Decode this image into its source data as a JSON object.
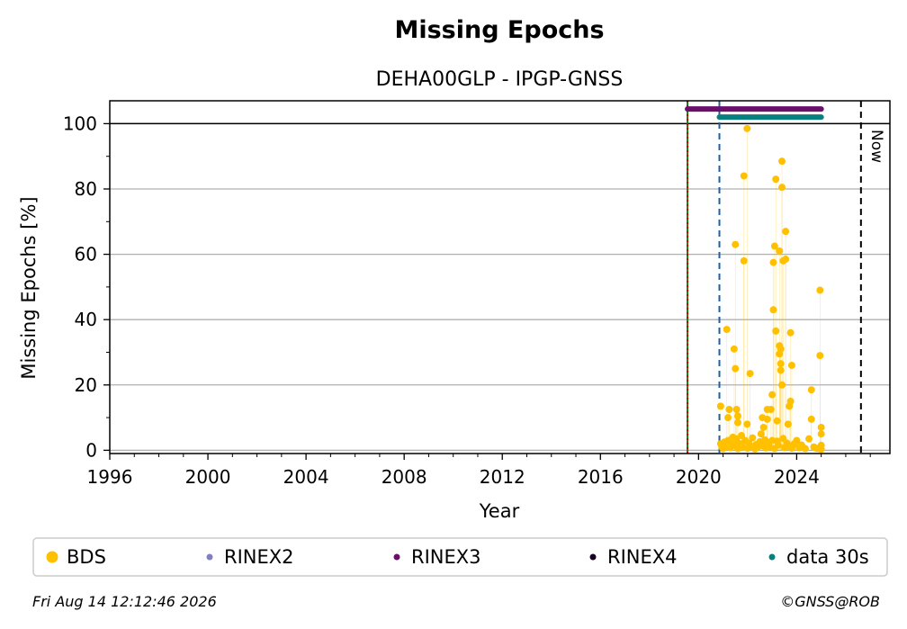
{
  "chart_data": {
    "type": "scatter",
    "title": "Missing Epochs",
    "subtitle": "DEHA00GLP - IPGP-GNSS",
    "xlabel": "Year",
    "ylabel": "Missing Epochs [%]",
    "xlim": [
      1996,
      2027.8
    ],
    "ylim": [
      -1,
      107
    ],
    "x_ticks": [
      1996,
      2000,
      2004,
      2008,
      2012,
      2016,
      2020,
      2024
    ],
    "y_ticks": [
      0,
      20,
      40,
      60,
      80,
      100
    ],
    "grid": "horizontal",
    "reference_line_y": 100,
    "vertical_lines": [
      {
        "x": 2019.55,
        "style": "solid",
        "color": "#1a7a1a"
      },
      {
        "x": 2019.55,
        "style": "dotted",
        "color": "#cc0000"
      },
      {
        "x": 2020.85,
        "style": "dashed",
        "color": "#1f5fa8"
      },
      {
        "x": 2026.62,
        "style": "dashed",
        "color": "#000000",
        "label": "Now"
      }
    ],
    "bars": [
      {
        "name": "RINEX3",
        "y": 104.5,
        "x_start": 2019.55,
        "x_end": 2025.0,
        "color": "#6b0f6b"
      },
      {
        "name": "data 30s",
        "y": 102.0,
        "x_start": 2020.85,
        "x_end": 2025.0,
        "color": "#0a7f7f"
      }
    ],
    "series": [
      {
        "name": "BDS",
        "color": "#ffc000",
        "points": [
          [
            2020.9,
            13.5
          ],
          [
            2021.15,
            37
          ],
          [
            2021.25,
            12.5
          ],
          [
            2021.2,
            10
          ],
          [
            2021.45,
            31
          ],
          [
            2021.5,
            63
          ],
          [
            2021.5,
            25
          ],
          [
            2021.55,
            12.5
          ],
          [
            2021.6,
            10.5
          ],
          [
            2021.6,
            8.5
          ],
          [
            2021.85,
            58
          ],
          [
            2021.85,
            84
          ],
          [
            2021.98,
            98.5
          ],
          [
            2021.98,
            8
          ],
          [
            2022.1,
            23.5
          ],
          [
            2022.6,
            10
          ],
          [
            2022.8,
            9.5
          ],
          [
            2022.8,
            12.5
          ],
          [
            2022.95,
            12.5
          ],
          [
            2023.0,
            17
          ],
          [
            2023.05,
            43
          ],
          [
            2023.05,
            57.5
          ],
          [
            2023.1,
            62.5
          ],
          [
            2023.15,
            83
          ],
          [
            2023.15,
            36.5
          ],
          [
            2023.2,
            9
          ],
          [
            2023.3,
            61
          ],
          [
            2023.3,
            32
          ],
          [
            2023.3,
            29.5
          ],
          [
            2023.35,
            31
          ],
          [
            2023.35,
            26.5
          ],
          [
            2023.35,
            24.5
          ],
          [
            2023.4,
            20
          ],
          [
            2023.4,
            80.5
          ],
          [
            2023.4,
            88.5
          ],
          [
            2023.45,
            58
          ],
          [
            2023.55,
            58.5
          ],
          [
            2023.55,
            67
          ],
          [
            2023.65,
            8
          ],
          [
            2023.7,
            13.5
          ],
          [
            2023.75,
            15
          ],
          [
            2023.75,
            36
          ],
          [
            2023.8,
            26
          ],
          [
            2024.6,
            18.5
          ],
          [
            2024.6,
            9.5
          ],
          [
            2024.95,
            49
          ],
          [
            2024.95,
            29
          ],
          [
            2025.0,
            7
          ],
          [
            2025.0,
            5
          ],
          [
            2020.9,
            2
          ],
          [
            2020.95,
            1
          ],
          [
            2021.0,
            0.5
          ],
          [
            2021.05,
            2.5
          ],
          [
            2021.1,
            1
          ],
          [
            2021.2,
            3
          ],
          [
            2021.3,
            0.8
          ],
          [
            2021.35,
            2
          ],
          [
            2021.4,
            4
          ],
          [
            2021.5,
            1.5
          ],
          [
            2021.55,
            3.5
          ],
          [
            2021.6,
            0.5
          ],
          [
            2021.7,
            2
          ],
          [
            2021.75,
            4.5
          ],
          [
            2021.8,
            1
          ],
          [
            2021.9,
            3
          ],
          [
            2022.0,
            0.6
          ],
          [
            2022.05,
            2.2
          ],
          [
            2022.15,
            1.2
          ],
          [
            2022.2,
            3.8
          ],
          [
            2022.3,
            0.4
          ],
          [
            2022.35,
            1.8
          ],
          [
            2022.4,
            0.9
          ],
          [
            2022.5,
            2.6
          ],
          [
            2022.55,
            5
          ],
          [
            2022.6,
            1.4
          ],
          [
            2022.65,
            7
          ],
          [
            2022.7,
            3.2
          ],
          [
            2022.75,
            0.7
          ],
          [
            2022.85,
            2.4
          ],
          [
            2022.9,
            1
          ],
          [
            2023.0,
            3
          ],
          [
            2023.1,
            0.5
          ],
          [
            2023.2,
            2.8
          ],
          [
            2023.25,
            1.6
          ],
          [
            2023.45,
            3.6
          ],
          [
            2023.5,
            0.8
          ],
          [
            2023.6,
            2.2
          ],
          [
            2023.7,
            1.2
          ],
          [
            2023.8,
            0.6
          ],
          [
            2023.9,
            2
          ],
          [
            2024.0,
            3
          ],
          [
            2024.1,
            0.8
          ],
          [
            2024.2,
            1.6
          ],
          [
            2024.35,
            0.5
          ],
          [
            2024.5,
            3.5
          ],
          [
            2024.7,
            1
          ],
          [
            2024.8,
            0.6
          ],
          [
            2024.9,
            0.5
          ],
          [
            2025.0,
            1.5
          ],
          [
            2025.0,
            0.3
          ]
        ]
      }
    ],
    "legend": {
      "placement": "bottom",
      "entries": [
        {
          "label": "BDS",
          "color": "#ffc000",
          "size": "large"
        },
        {
          "label": "RINEX2",
          "color": "#8080c0",
          "size": "small"
        },
        {
          "label": "RINEX3",
          "color": "#6b0f6b",
          "size": "small"
        },
        {
          "label": "RINEX4",
          "color": "#1a0020",
          "size": "small"
        },
        {
          "label": "data 30s",
          "color": "#0a7f7f",
          "size": "small"
        }
      ]
    }
  },
  "footer": {
    "timestamp": "Fri Aug 14 12:12:46 2026",
    "copyright": "©GNSS@ROB"
  }
}
